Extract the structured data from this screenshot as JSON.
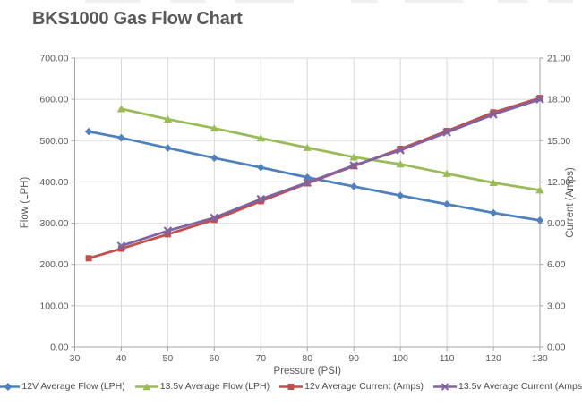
{
  "title": "BKS1000 Gas Flow Chart",
  "colors": {
    "title_text": "#595959",
    "axis_text": "#595959",
    "legend_text": "#4d4d4d",
    "gridline": "#d9d9d9",
    "axis_line": "#a6a6a6",
    "background": "#ffffff"
  },
  "chart_data": {
    "type": "line",
    "title": "BKS1000 Gas Flow Chart",
    "grid": true,
    "legend_position": "bottom",
    "x_axis": {
      "label": "Pressure (PSI)",
      "min": 30,
      "max": 130,
      "ticks": [
        "30",
        "40",
        "50",
        "60",
        "70",
        "80",
        "90",
        "100",
        "110",
        "120",
        "130"
      ]
    },
    "left_axis": {
      "label": "Flow (LPH)",
      "min": 0,
      "max": 700,
      "ticks": [
        "0.00",
        "100.00",
        "200.00",
        "300.00",
        "400.00",
        "500.00",
        "600.00",
        "700.00"
      ]
    },
    "right_axis": {
      "label": "Current (Amps)",
      "min": 0,
      "max": 21,
      "ticks": [
        "0.00",
        "3.00",
        "6.00",
        "9.00",
        "12.00",
        "15.00",
        "18.00",
        "21.00"
      ]
    },
    "style": {
      "grid": "#d9d9d9",
      "axis": "#a6a6a6",
      "tick_font_size": 10.5,
      "axis_title_font_size": 11.5
    },
    "series": [
      {
        "name": "12V Average Flow (LPH)",
        "axis": "left",
        "color": "#4F81BD",
        "marker": "diamond",
        "x": [
          33,
          40,
          50,
          60,
          70,
          80,
          90,
          100,
          110,
          120,
          130
        ],
        "y": [
          522,
          507,
          482,
          458,
          435,
          411,
          389,
          367,
          346,
          325,
          307
        ]
      },
      {
        "name": "13.5v Average Flow (LPH)",
        "axis": "left",
        "color": "#9BBB59",
        "marker": "triangle",
        "x": [
          40,
          50,
          60,
          70,
          80,
          90,
          100,
          110,
          120,
          130
        ],
        "y": [
          577,
          552,
          530,
          506,
          483,
          460,
          443,
          420,
          398,
          380
        ]
      },
      {
        "name": "12v Average Current (Amps)",
        "axis": "right",
        "color": "#C0504D",
        "marker": "square",
        "x": [
          33,
          40,
          50,
          60,
          70,
          80,
          90,
          100,
          110,
          120,
          130
        ],
        "y": [
          6.45,
          7.15,
          8.2,
          9.25,
          10.6,
          11.9,
          13.15,
          14.4,
          15.7,
          17.05,
          18.1
        ]
      },
      {
        "name": "13.5v Average Current (Amps)",
        "axis": "right",
        "color": "#8064A2",
        "marker": "x",
        "x": [
          40,
          50,
          60,
          70,
          80,
          90,
          100,
          110,
          120,
          130
        ],
        "y": [
          7.35,
          8.45,
          9.4,
          10.75,
          11.95,
          13.2,
          14.3,
          15.6,
          16.9,
          18.0
        ]
      }
    ]
  }
}
